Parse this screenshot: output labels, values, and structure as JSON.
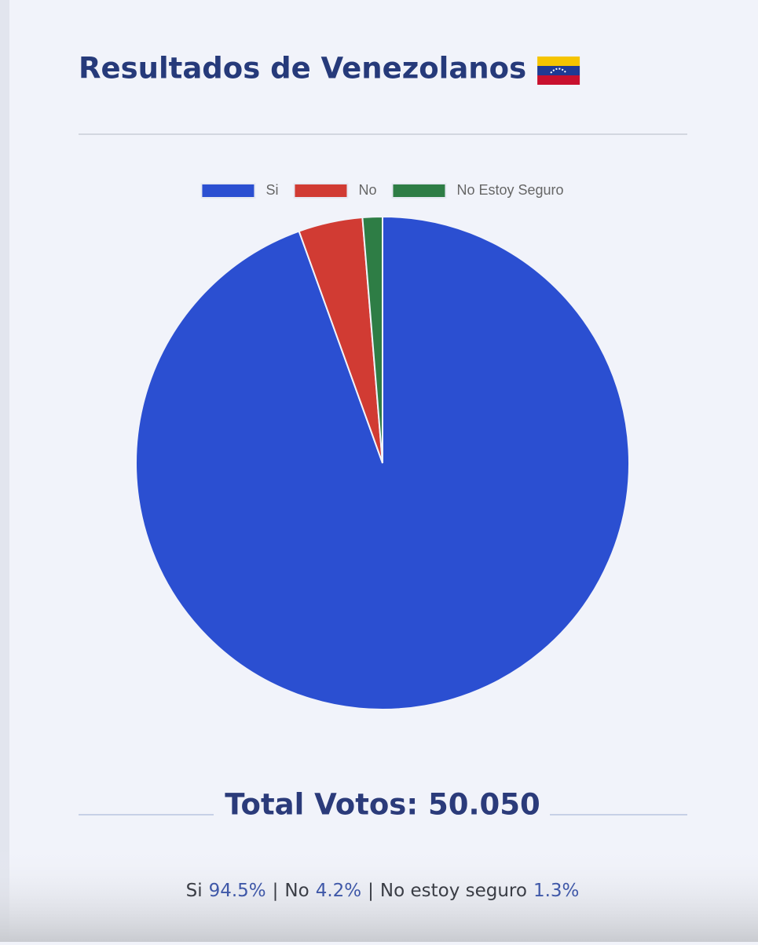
{
  "chart_data": {
    "type": "pie",
    "title": "Resultados de Venezolanos",
    "categories": [
      "Si",
      "No",
      "No Estoy Seguro"
    ],
    "values": [
      94.5,
      4.2,
      1.3
    ],
    "value_labels": [
      "94.5%",
      "4.2%",
      "1.3%"
    ],
    "colors": [
      "#2b4fd1",
      "#d13b33",
      "#2e7d45"
    ],
    "legend": "top",
    "total_text": "Total Votos: 50.050",
    "summary_names": [
      "Si",
      "No",
      "No estoy seguro"
    ],
    "separator": "|"
  }
}
